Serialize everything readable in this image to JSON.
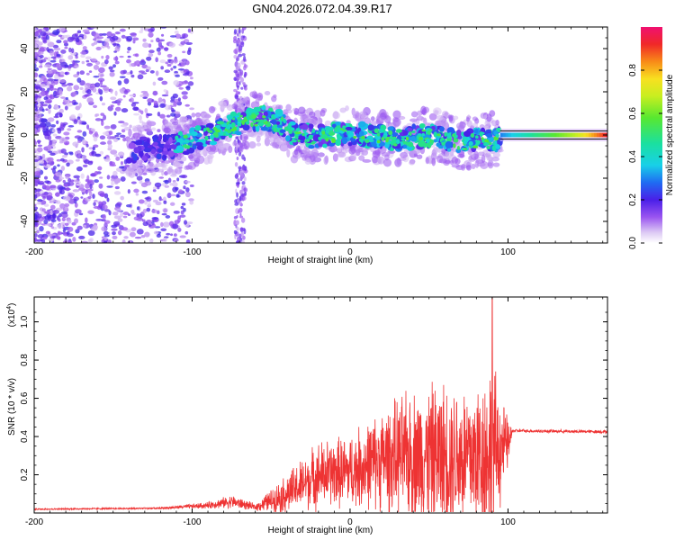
{
  "title": "GN04.2026.072.04.39.R17",
  "chart_data": [
    {
      "type": "heatmap",
      "xlabel": "Height of straight line (km)",
      "ylabel": "Frequency (Hz)",
      "xlim": [
        -200,
        163
      ],
      "ylim": [
        -50,
        50
      ],
      "xticks": [
        -200,
        -100,
        0,
        100
      ],
      "yticks": [
        -40,
        -20,
        0,
        20,
        40
      ],
      "colorbar": {
        "label": "Normalized spectral amplitude",
        "range": [
          0,
          1
        ],
        "ticks": [
          0.0,
          0.2,
          0.4,
          0.6,
          0.8
        ]
      },
      "ridge": [
        {
          "x": -140,
          "y": -7
        },
        {
          "x": -110,
          "y": -5
        },
        {
          "x": -90,
          "y": 0
        },
        {
          "x": -70,
          "y": 6
        },
        {
          "x": -55,
          "y": 8
        },
        {
          "x": -45,
          "y": 6
        },
        {
          "x": -35,
          "y": 0
        },
        {
          "x": -20,
          "y": -1
        },
        {
          "x": -5,
          "y": 1
        },
        {
          "x": 10,
          "y": 0
        },
        {
          "x": 30,
          "y": -2
        },
        {
          "x": 50,
          "y": 0
        },
        {
          "x": 70,
          "y": -4
        },
        {
          "x": 85,
          "y": -2
        },
        {
          "x": 95,
          "y": -2
        },
        {
          "x": 160,
          "y": 0
        }
      ]
    },
    {
      "type": "line",
      "xlabel": "Height of straight line (km)",
      "ylabel": "SNR (10 * v/v)",
      "yscale_label": "(x10",
      "yscale_exp": "4",
      "yscale_close": ")",
      "xlim": [
        -200,
        163
      ],
      "ylim": [
        0,
        1.13
      ],
      "xticks": [
        -200,
        -100,
        0,
        100
      ],
      "yticks": [
        0.2,
        0.4,
        0.6,
        0.8,
        1.0
      ],
      "color": "#ee3333",
      "envelope": [
        {
          "x": -200,
          "base": 0.02,
          "amp": 0.005
        },
        {
          "x": -120,
          "base": 0.025,
          "amp": 0.005
        },
        {
          "x": -90,
          "base": 0.04,
          "amp": 0.02
        },
        {
          "x": -75,
          "base": 0.06,
          "amp": 0.04
        },
        {
          "x": -60,
          "base": 0.03,
          "amp": 0.02
        },
        {
          "x": -40,
          "base": 0.1,
          "amp": 0.12
        },
        {
          "x": -20,
          "base": 0.2,
          "amp": 0.2
        },
        {
          "x": 0,
          "base": 0.22,
          "amp": 0.22
        },
        {
          "x": 20,
          "base": 0.28,
          "amp": 0.3
        },
        {
          "x": 40,
          "base": 0.3,
          "amp": 0.4
        },
        {
          "x": 60,
          "base": 0.3,
          "amp": 0.45
        },
        {
          "x": 80,
          "base": 0.3,
          "amp": 0.45
        },
        {
          "x": 90,
          "base": 0.32,
          "amp": 0.55
        },
        {
          "x": 100,
          "base": 0.36,
          "amp": 0.15
        },
        {
          "x": 103,
          "base": 0.43,
          "amp": 0.01
        },
        {
          "x": 163,
          "base": 0.425,
          "amp": 0.01
        }
      ],
      "peak": {
        "x": 90,
        "y": 1.13
      }
    }
  ]
}
